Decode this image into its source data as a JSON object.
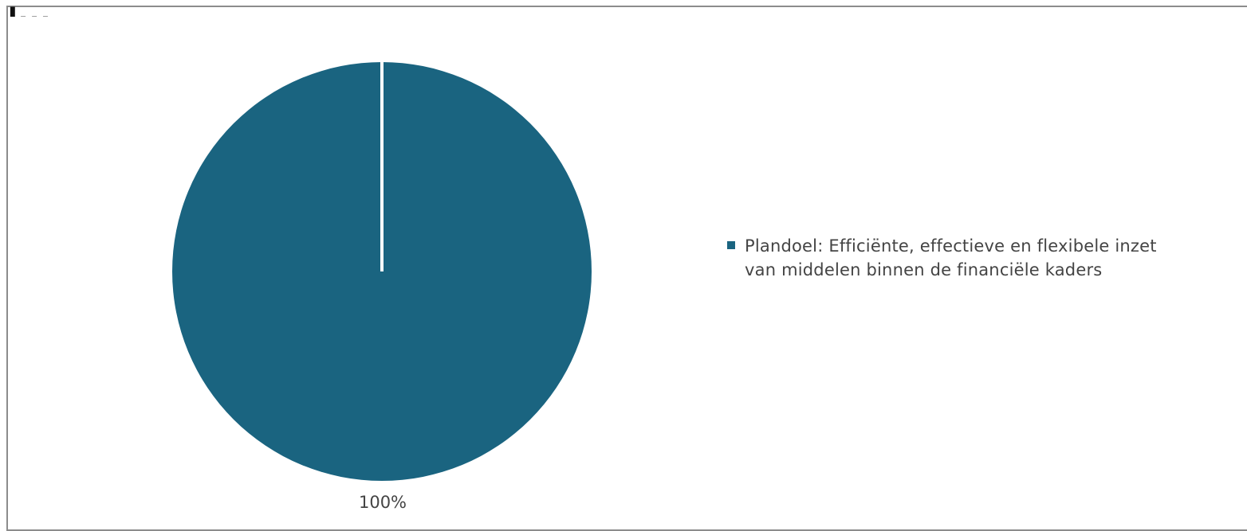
{
  "top_fragment": {
    "text": "ı..."
  },
  "chart_data": {
    "type": "pie",
    "title": "",
    "slices": [
      {
        "name": "Plandoel: Efficiënte, effectieve en flexibele inzet van middelen binnen de financiële kaders",
        "value": 100,
        "label": "100%"
      }
    ],
    "legend": {
      "placement": "right",
      "entries": [
        {
          "line1": "Plandoel: Efficiënte, effectieve en flexibele inzet",
          "line2": "van middelen binnen de financiële kaders"
        }
      ]
    },
    "colors": {
      "slice": "#1a6480",
      "separator": "#ffffff",
      "text": "#444444",
      "frame": "#8c8c8c"
    }
  }
}
